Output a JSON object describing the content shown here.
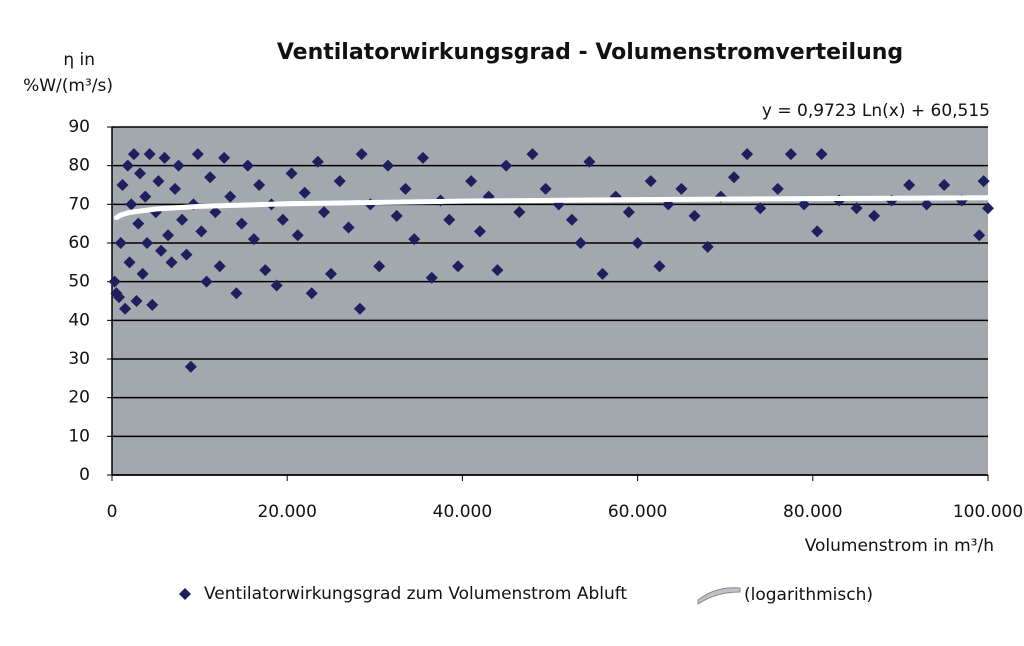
{
  "chart_data": {
    "type": "scatter",
    "title": "Ventilatorwirkungsgrad - Volumenstromverteilung",
    "y_label": [
      "η in",
      "%W/(m³/s)"
    ],
    "x_label": "Volumenstrom in m³/h",
    "annotation": "y = 0,9723 Ln(x) + 60,515",
    "xlim": [
      0,
      100000
    ],
    "ylim": [
      0,
      90
    ],
    "xticks": [
      0,
      {
        "value": 20000,
        "label": "20.000"
      },
      {
        "value": 40000,
        "label": "40.000"
      },
      {
        "value": 60000,
        "label": "60.000"
      },
      {
        "value": 80000,
        "label": "80.000"
      },
      {
        "value": 100000,
        "label": "100.000"
      }
    ],
    "yticks": [
      0,
      10,
      20,
      30,
      40,
      50,
      60,
      70,
      80,
      90
    ],
    "grid": true,
    "background": "#a2a8ae",
    "series": [
      {
        "name": "Ventilatorwirkungsgrad zum Volumenstrom Abluft",
        "color": "#1e1f5c",
        "type": "scatter",
        "x": [
          300,
          500,
          800,
          1000,
          1200,
          1500,
          1800,
          2000,
          2200,
          2500,
          2800,
          3000,
          3200,
          3500,
          3800,
          4000,
          4300,
          4600,
          5000,
          5300,
          5600,
          6000,
          6400,
          6800,
          7200,
          7600,
          8000,
          8500,
          9000,
          9300,
          9800,
          10200,
          10800,
          11200,
          11800,
          12300,
          12800,
          13500,
          14200,
          14800,
          15500,
          16200,
          16800,
          17500,
          18200,
          18800,
          19500,
          20500,
          21200,
          22000,
          22800,
          23500,
          24200,
          25000,
          26000,
          27000,
          28300,
          28500,
          29500,
          30500,
          31500,
          32500,
          33500,
          34500,
          35500,
          36500,
          37500,
          38500,
          39500,
          41000,
          42000,
          43000,
          44000,
          45000,
          46500,
          48000,
          49500,
          51000,
          52500,
          53500,
          54500,
          56000,
          57500,
          59000,
          60000,
          61500,
          62500,
          63500,
          65000,
          66500,
          68000,
          69500,
          71000,
          72500,
          74000,
          76000,
          77500,
          79000,
          80500,
          81000,
          83000,
          85000,
          87000,
          89000,
          91000,
          93000,
          95000,
          97000,
          99000,
          99500,
          100000
        ],
        "values": [
          50,
          47,
          46,
          60,
          75,
          43,
          80,
          55,
          70,
          83,
          45,
          65,
          78,
          52,
          72,
          60,
          83,
          44,
          68,
          76,
          58,
          82,
          62,
          55,
          74,
          80,
          66,
          57,
          28,
          70,
          83,
          63,
          50,
          77,
          68,
          54,
          82,
          72,
          47,
          65,
          80,
          61,
          75,
          53,
          70,
          49,
          66,
          78,
          62,
          73,
          47,
          81,
          68,
          52,
          76,
          64,
          43,
          83,
          70,
          54,
          80,
          67,
          74,
          61,
          82,
          51,
          71,
          66,
          54,
          76,
          63,
          72,
          53,
          80,
          68,
          83,
          74,
          70,
          66,
          60,
          81,
          52,
          72,
          68,
          60,
          76,
          54,
          70,
          74,
          67,
          59,
          72,
          77,
          83,
          69,
          74,
          83,
          70,
          63,
          83,
          71,
          69,
          67,
          71,
          75,
          70,
          75,
          71,
          62,
          76,
          69
        ]
      },
      {
        "name": "(logarithmisch)",
        "color": "#ffffff",
        "type": "line",
        "x": [
          500,
          1000,
          2000,
          5000,
          10000,
          20000,
          40000,
          60000,
          80000,
          100000
        ],
        "values": [
          66.56,
          67.23,
          67.91,
          68.8,
          69.47,
          70.14,
          70.82,
          71.21,
          71.49,
          71.71
        ]
      }
    ]
  }
}
